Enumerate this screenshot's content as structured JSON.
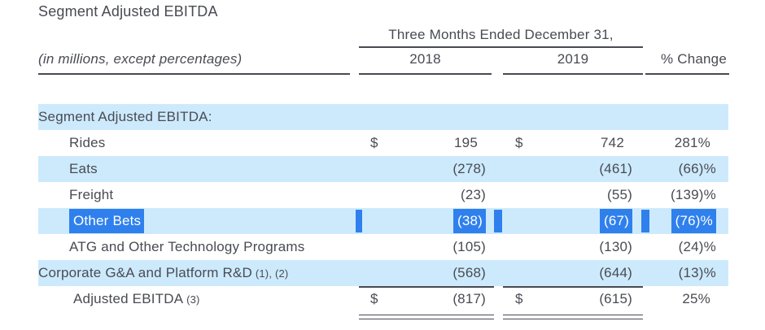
{
  "title": "Segment Adjusted EBITDA",
  "table": {
    "period_header": "Three Months Ended December 31,",
    "units_note": "(in millions, except percentages)",
    "columns": {
      "col_2018": "2018",
      "col_2019": "2019",
      "col_change": "% Change"
    },
    "rows": [
      {
        "label": "Segment Adjusted EBITDA:",
        "indent": 0,
        "shaded": true,
        "selected": false,
        "usd1": "",
        "v1": "",
        "usd2": "",
        "v2": "",
        "pct": ""
      },
      {
        "label": "Rides",
        "indent": 1,
        "shaded": false,
        "selected": false,
        "usd1": "$",
        "v1": "195",
        "usd2": "$",
        "v2": "742",
        "pct": "281%"
      },
      {
        "label": "Eats",
        "indent": 1,
        "shaded": true,
        "selected": false,
        "usd1": "",
        "v1": "(278)",
        "usd2": "",
        "v2": "(461)",
        "pct": "(66)%"
      },
      {
        "label": "Freight",
        "indent": 1,
        "shaded": false,
        "selected": false,
        "usd1": "",
        "v1": "(23)",
        "usd2": "",
        "v2": "(55)",
        "pct": "(139)%"
      },
      {
        "label": "Other Bets",
        "indent": 1,
        "shaded": true,
        "selected": true,
        "usd1": "",
        "v1": "(38)",
        "usd2": "",
        "v2": "(67)",
        "pct": "(76)%"
      },
      {
        "label": "ATG and Other Technology Programs",
        "indent": 1,
        "shaded": false,
        "selected": false,
        "usd1": "",
        "v1": "(105)",
        "usd2": "",
        "v2": "(130)",
        "pct": "(24)%"
      },
      {
        "label": "Corporate G&A and Platform R&D",
        "label_suffix": "(1), (2)",
        "indent": 0,
        "shaded": true,
        "selected": false,
        "usd1": "",
        "v1": "(568)",
        "usd2": "",
        "v2": "(644)",
        "pct": "(13)%"
      },
      {
        "label": "Adjusted EBITDA",
        "label_suffix": "(3)",
        "indent": 2,
        "shaded": false,
        "selected": false,
        "usd1": "$",
        "v1": "(817)",
        "usd2": "$",
        "v2": "(615)",
        "pct": "25%"
      }
    ]
  },
  "selection": {
    "selected_row": "Other Bets",
    "selected_cells": [
      "label",
      "v1",
      "v2",
      "pct"
    ],
    "selection_color": "#2f80ed"
  },
  "colors": {
    "row_shade": "#cdeafd",
    "text": "#494b53",
    "selection": "#2f80ed",
    "selected_text": "#ffffff"
  }
}
